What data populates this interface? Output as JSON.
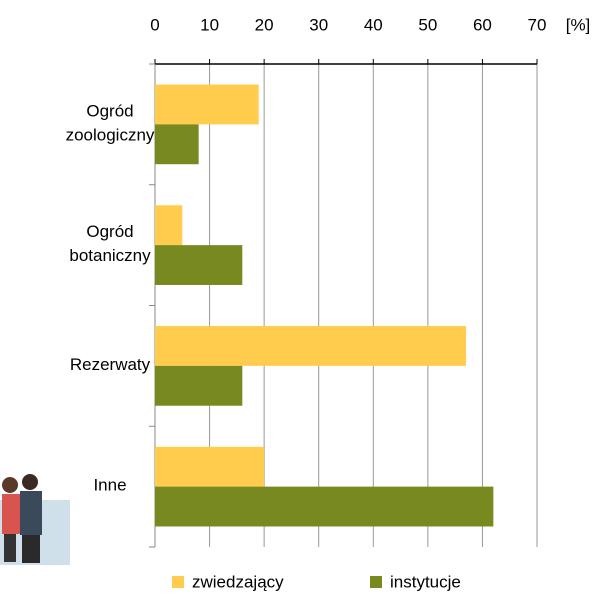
{
  "chart_data": {
    "type": "barh",
    "xlabel": "[%]",
    "categories": [
      "Ogród zoologiczny",
      "Ogród botaniczny",
      "Rezerwaty",
      "Inne"
    ],
    "series": [
      {
        "name": "zwiedzający",
        "color": "#ffcc4d",
        "values": [
          19,
          5,
          57,
          20
        ]
      },
      {
        "name": "instytucje",
        "color": "#77891f",
        "values": [
          8,
          16,
          16,
          62
        ]
      }
    ],
    "xlim": [
      0,
      70
    ],
    "xticks": [
      0,
      10,
      20,
      30,
      40,
      50,
      60,
      70
    ],
    "grid": true,
    "legend": "bottom"
  }
}
